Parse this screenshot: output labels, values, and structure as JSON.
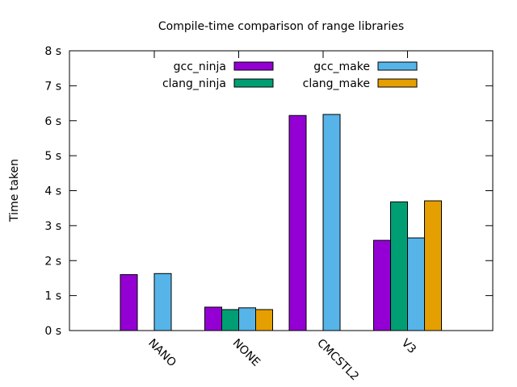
{
  "chart_data": {
    "type": "bar",
    "title": "Compile-time comparison of range libraries",
    "xlabel": "",
    "ylabel": "Time taken",
    "ylim": [
      0,
      8
    ],
    "yticks": [
      "0 s",
      "1 s",
      "2 s",
      "3 s",
      "4 s",
      "5 s",
      "6 s",
      "7 s",
      "8 s"
    ],
    "categories": [
      "NANO",
      "NONE",
      "CMCSTL2",
      "V3"
    ],
    "legend_position": "top-right",
    "series": [
      {
        "name": "gcc_ninja",
        "color": "#9400d3",
        "values": [
          1.6,
          0.67,
          6.15,
          2.58
        ]
      },
      {
        "name": "clang_ninja",
        "color": "#009e73",
        "values": [
          null,
          0.6,
          null,
          3.68
        ]
      },
      {
        "name": "gcc_make",
        "color": "#56b4e9",
        "values": [
          1.63,
          0.65,
          6.18,
          2.65
        ]
      },
      {
        "name": "clang_make",
        "color": "#e69f00",
        "values": [
          null,
          0.6,
          null,
          3.71
        ]
      }
    ]
  }
}
